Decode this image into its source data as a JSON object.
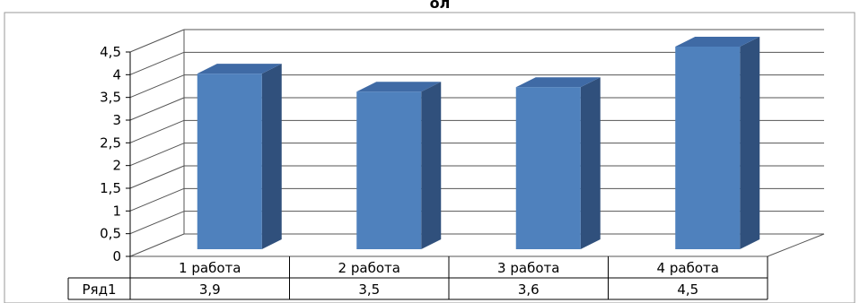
{
  "chart_data": {
    "type": "bar",
    "title": "ол",
    "categories": [
      "1 работа",
      "2 работа",
      "3 работа",
      "4 работа"
    ],
    "series": [
      {
        "name": "Ряд1",
        "values": [
          3.9,
          3.5,
          3.6,
          4.5
        ]
      }
    ],
    "value_labels": [
      "3,9",
      "3,5",
      "3,6",
      "4,5"
    ],
    "y_ticks": [
      "0",
      "0,5",
      "1",
      "1,5",
      "2",
      "2,5",
      "3",
      "3,5",
      "4",
      "4,5"
    ],
    "ylim": [
      0,
      4.5
    ],
    "grid": true,
    "legend": "none",
    "data_table": true,
    "style": "3d-column",
    "colors": {
      "bar_front": "#4f81bd",
      "bar_side": "#30507c",
      "bar_top": "#3f6aa5",
      "grid": "#555555",
      "border": "#999999",
      "axis": "#000000"
    }
  }
}
